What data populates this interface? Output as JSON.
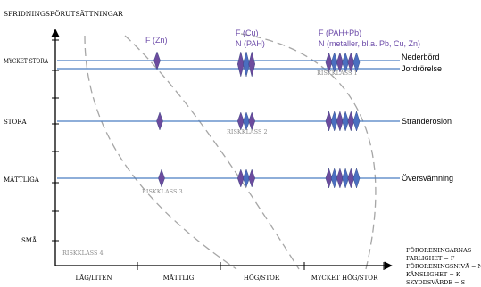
{
  "title": "SPRIDNINGSFÖRUTSÄTTNINGAR",
  "y_levels": [
    "MYCKET STORA",
    "STORA",
    "MÅTTLIGA",
    "SMÅ"
  ],
  "x_levels": [
    "LÅG/LITEN",
    "MÅTTLIG",
    "HÖG/STOR",
    "MYCKET HÖG/STOR"
  ],
  "column_headers": [
    "F (Zn)",
    "F (Cu)",
    "N (PAH)",
    "F (PAH+Pb)",
    "N (metaller, bl.a. Pb, Cu, Zn)"
  ],
  "lines": [
    "Nederbörd",
    "Jordrörelse",
    "Stranderosion",
    "Översvämning"
  ],
  "risk_classes": [
    "RISKKLASS 1",
    "RISKKLASS 2",
    "RISKKLASS 3",
    "RISKKLASS 4"
  ],
  "legend": [
    "FÖRORENINGARNAS",
    "FARLIGHET = F",
    "FÖRORENINGSNIVÅ = N",
    "KÄNSLIGHET = K",
    "SKYDDSVÄRDE = S"
  ],
  "colors": {
    "line": "#4a7ec2",
    "diamond_purple": "#6c4b9e",
    "diamond_blue": "#4a6fc0",
    "boundary": "#a6a6a6",
    "header_text": "#6b4aa8"
  }
}
